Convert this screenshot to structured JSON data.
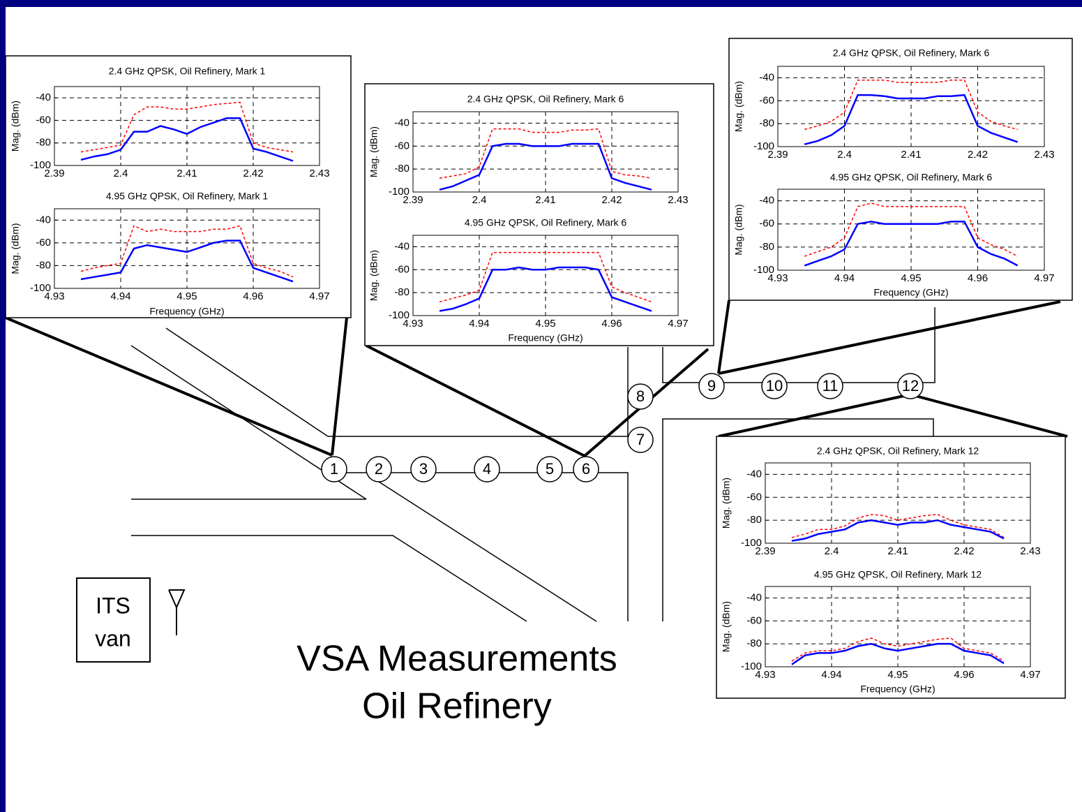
{
  "title_lines": [
    "VSA Measurements",
    "Oil Refinery"
  ],
  "van_label": [
    "ITS",
    "van"
  ],
  "markers": [
    "1",
    "2",
    "3",
    "4",
    "5",
    "6",
    "7",
    "8",
    "9",
    "10",
    "11",
    "12"
  ],
  "chart_data": [
    {
      "type": "line",
      "title": "2.4 GHz QPSK, Oil Refinery, Mark 1",
      "ylabel": "Mag. (dBm)",
      "x": [
        2.394,
        2.396,
        2.398,
        2.4,
        2.402,
        2.404,
        2.406,
        2.408,
        2.41,
        2.412,
        2.414,
        2.416,
        2.418,
        2.42,
        2.422,
        2.424,
        2.426
      ],
      "series": [
        {
          "color": "red",
          "line_style": "dashed",
          "values": [
            -88,
            -86,
            -84,
            -82,
            -55,
            -48,
            -48,
            -50,
            -50,
            -48,
            -46,
            -45,
            -44,
            -80,
            -84,
            -86,
            -88
          ]
        },
        {
          "color": "blue",
          "line_style": "solid",
          "values": [
            -95,
            -92,
            -90,
            -86,
            -70,
            -70,
            -65,
            -68,
            -72,
            -66,
            -62,
            -58,
            -58,
            -85,
            -88,
            -92,
            -96
          ]
        }
      ],
      "xlim": [
        2.39,
        2.43
      ],
      "ylim": [
        -100,
        -30
      ],
      "xticks": [
        2.39,
        2.4,
        2.41,
        2.42,
        2.43
      ],
      "yticks": [
        -100,
        -80,
        -60,
        -40
      ],
      "grid": true
    },
    {
      "type": "line",
      "title": "4.95 GHz QPSK, Oil Refinery, Mark 1",
      "ylabel": "Mag. (dBm)",
      "xlabel": "Frequency (GHz)",
      "x": [
        4.934,
        4.936,
        4.938,
        4.94,
        4.942,
        4.944,
        4.946,
        4.948,
        4.95,
        4.952,
        4.954,
        4.956,
        4.958,
        4.96,
        4.962,
        4.964,
        4.966
      ],
      "series": [
        {
          "color": "red",
          "line_style": "dashed",
          "values": [
            -85,
            -82,
            -80,
            -78,
            -45,
            -50,
            -48,
            -50,
            -50,
            -50,
            -48,
            -48,
            -45,
            -78,
            -82,
            -85,
            -90
          ]
        },
        {
          "color": "blue",
          "line_style": "solid",
          "values": [
            -92,
            -90,
            -88,
            -86,
            -65,
            -62,
            -64,
            -66,
            -68,
            -64,
            -60,
            -58,
            -58,
            -82,
            -86,
            -90,
            -94
          ]
        }
      ],
      "xlim": [
        4.93,
        4.97
      ],
      "ylim": [
        -100,
        -30
      ],
      "xticks": [
        4.93,
        4.94,
        4.95,
        4.96,
        4.97
      ],
      "yticks": [
        -100,
        -80,
        -60,
        -40
      ],
      "grid": true
    },
    {
      "type": "line",
      "title": "2.4 GHz QPSK, Oil Refinery, Mark 6",
      "ylabel": "Mag. (dBm)",
      "x": [
        2.394,
        2.396,
        2.398,
        2.4,
        2.402,
        2.404,
        2.406,
        2.408,
        2.41,
        2.412,
        2.414,
        2.416,
        2.418,
        2.42,
        2.422,
        2.424,
        2.426
      ],
      "series": [
        {
          "color": "red",
          "line_style": "dashed",
          "values": [
            -88,
            -86,
            -84,
            -78,
            -45,
            -45,
            -45,
            -48,
            -48,
            -48,
            -46,
            -46,
            -45,
            -82,
            -85,
            -86,
            -88
          ]
        },
        {
          "color": "blue",
          "line_style": "solid",
          "values": [
            -98,
            -95,
            -90,
            -85,
            -60,
            -58,
            -58,
            -60,
            -60,
            -60,
            -58,
            -58,
            -58,
            -88,
            -92,
            -95,
            -98
          ]
        }
      ],
      "xlim": [
        2.39,
        2.43
      ],
      "ylim": [
        -100,
        -30
      ],
      "xticks": [
        2.39,
        2.4,
        2.41,
        2.42,
        2.43
      ],
      "yticks": [
        -100,
        -80,
        -60,
        -40
      ],
      "grid": true
    },
    {
      "type": "line",
      "title": "4.95 GHz QPSK, Oil Refinery, Mark 6",
      "ylabel": "Mag. (dBm)",
      "xlabel": "Frequency (GHz)",
      "x": [
        4.934,
        4.936,
        4.938,
        4.94,
        4.942,
        4.944,
        4.946,
        4.948,
        4.95,
        4.952,
        4.954,
        4.956,
        4.958,
        4.96,
        4.962,
        4.964,
        4.966
      ],
      "series": [
        {
          "color": "red",
          "line_style": "dashed",
          "values": [
            -88,
            -85,
            -82,
            -78,
            -45,
            -45,
            -45,
            -45,
            -45,
            -45,
            -45,
            -45,
            -45,
            -75,
            -80,
            -84,
            -88
          ]
        },
        {
          "color": "blue",
          "line_style": "solid",
          "values": [
            -96,
            -94,
            -90,
            -85,
            -60,
            -60,
            -58,
            -60,
            -60,
            -58,
            -58,
            -58,
            -60,
            -84,
            -88,
            -92,
            -96
          ]
        }
      ],
      "xlim": [
        4.93,
        4.97
      ],
      "ylim": [
        -100,
        -30
      ],
      "xticks": [
        4.93,
        4.94,
        4.95,
        4.96,
        4.97
      ],
      "yticks": [
        -100,
        -80,
        -60,
        -40
      ],
      "grid": true
    },
    {
      "type": "line",
      "title": "2.4 GHz QPSK, Oil Refinery, Mark 6",
      "ylabel": "Mag. (dBm)",
      "x": [
        2.394,
        2.396,
        2.398,
        2.4,
        2.402,
        2.404,
        2.406,
        2.408,
        2.41,
        2.412,
        2.414,
        2.416,
        2.418,
        2.42,
        2.422,
        2.424,
        2.426
      ],
      "series": [
        {
          "color": "red",
          "line_style": "dashed",
          "values": [
            -85,
            -82,
            -78,
            -70,
            -42,
            -42,
            -42,
            -44,
            -44,
            -44,
            -44,
            -42,
            -42,
            -70,
            -78,
            -82,
            -85
          ]
        },
        {
          "color": "blue",
          "line_style": "solid",
          "values": [
            -98,
            -95,
            -90,
            -82,
            -55,
            -55,
            -56,
            -58,
            -58,
            -58,
            -56,
            -56,
            -55,
            -82,
            -88,
            -92,
            -96
          ]
        }
      ],
      "xlim": [
        2.39,
        2.43
      ],
      "ylim": [
        -100,
        -30
      ],
      "xticks": [
        2.39,
        2.4,
        2.41,
        2.42,
        2.43
      ],
      "yticks": [
        -100,
        -80,
        -60,
        -40
      ],
      "grid": true
    },
    {
      "type": "line",
      "title": "4.95 GHz QPSK, Oil Refinery, Mark 6",
      "ylabel": "Mag. (dBm)",
      "xlabel": "Frequency (GHz)",
      "x": [
        4.934,
        4.936,
        4.938,
        4.94,
        4.942,
        4.944,
        4.946,
        4.948,
        4.95,
        4.952,
        4.954,
        4.956,
        4.958,
        4.96,
        4.962,
        4.964,
        4.966
      ],
      "series": [
        {
          "color": "red",
          "line_style": "dashed",
          "values": [
            -88,
            -84,
            -80,
            -72,
            -45,
            -42,
            -45,
            -45,
            -45,
            -45,
            -45,
            -45,
            -45,
            -72,
            -78,
            -82,
            -88
          ]
        },
        {
          "color": "blue",
          "line_style": "solid",
          "values": [
            -96,
            -92,
            -88,
            -82,
            -60,
            -58,
            -60,
            -60,
            -60,
            -60,
            -60,
            -58,
            -58,
            -80,
            -86,
            -90,
            -96
          ]
        }
      ],
      "xlim": [
        4.93,
        4.97
      ],
      "ylim": [
        -100,
        -30
      ],
      "xticks": [
        4.93,
        4.94,
        4.95,
        4.96,
        4.97
      ],
      "yticks": [
        -100,
        -80,
        -60,
        -40
      ],
      "grid": true
    },
    {
      "type": "line",
      "title": "2.4 GHz QPSK, Oil Refinery, Mark 12",
      "ylabel": "Mag. (dBm)",
      "x": [
        2.394,
        2.396,
        2.398,
        2.4,
        2.402,
        2.404,
        2.406,
        2.408,
        2.41,
        2.412,
        2.414,
        2.416,
        2.418,
        2.42,
        2.422,
        2.424,
        2.426
      ],
      "series": [
        {
          "color": "red",
          "line_style": "dashed",
          "values": [
            -95,
            -92,
            -88,
            -88,
            -85,
            -78,
            -75,
            -76,
            -80,
            -78,
            -76,
            -75,
            -80,
            -84,
            -86,
            -88,
            -95
          ]
        },
        {
          "color": "blue",
          "line_style": "solid",
          "values": [
            -98,
            -96,
            -92,
            -90,
            -88,
            -82,
            -80,
            -82,
            -84,
            -82,
            -82,
            -80,
            -84,
            -86,
            -88,
            -90,
            -96
          ]
        }
      ],
      "xlim": [
        2.39,
        2.43
      ],
      "ylim": [
        -100,
        -30
      ],
      "xticks": [
        2.39,
        2.4,
        2.41,
        2.42,
        2.43
      ],
      "yticks": [
        -100,
        -80,
        -60,
        -40
      ],
      "grid": true
    },
    {
      "type": "line",
      "title": "4.95 GHz QPSK, Oil Refinery, Mark 12",
      "ylabel": "Mag. (dBm)",
      "xlabel": "Frequency (GHz)",
      "x": [
        4.934,
        4.936,
        4.938,
        4.94,
        4.942,
        4.944,
        4.946,
        4.948,
        4.95,
        4.952,
        4.954,
        4.956,
        4.958,
        4.96,
        4.962,
        4.964,
        4.966
      ],
      "series": [
        {
          "color": "red",
          "line_style": "dashed",
          "values": [
            -95,
            -88,
            -86,
            -86,
            -84,
            -78,
            -75,
            -80,
            -82,
            -80,
            -78,
            -76,
            -75,
            -84,
            -86,
            -88,
            -95
          ]
        },
        {
          "color": "blue",
          "line_style": "solid",
          "values": [
            -98,
            -90,
            -88,
            -88,
            -86,
            -82,
            -80,
            -84,
            -86,
            -84,
            -82,
            -80,
            -80,
            -86,
            -88,
            -90,
            -97
          ]
        }
      ],
      "xlim": [
        4.93,
        4.97
      ],
      "ylim": [
        -100,
        -30
      ],
      "xticks": [
        4.93,
        4.94,
        4.95,
        4.96,
        4.97
      ],
      "yticks": [
        -100,
        -80,
        -60,
        -40
      ],
      "grid": true
    }
  ]
}
